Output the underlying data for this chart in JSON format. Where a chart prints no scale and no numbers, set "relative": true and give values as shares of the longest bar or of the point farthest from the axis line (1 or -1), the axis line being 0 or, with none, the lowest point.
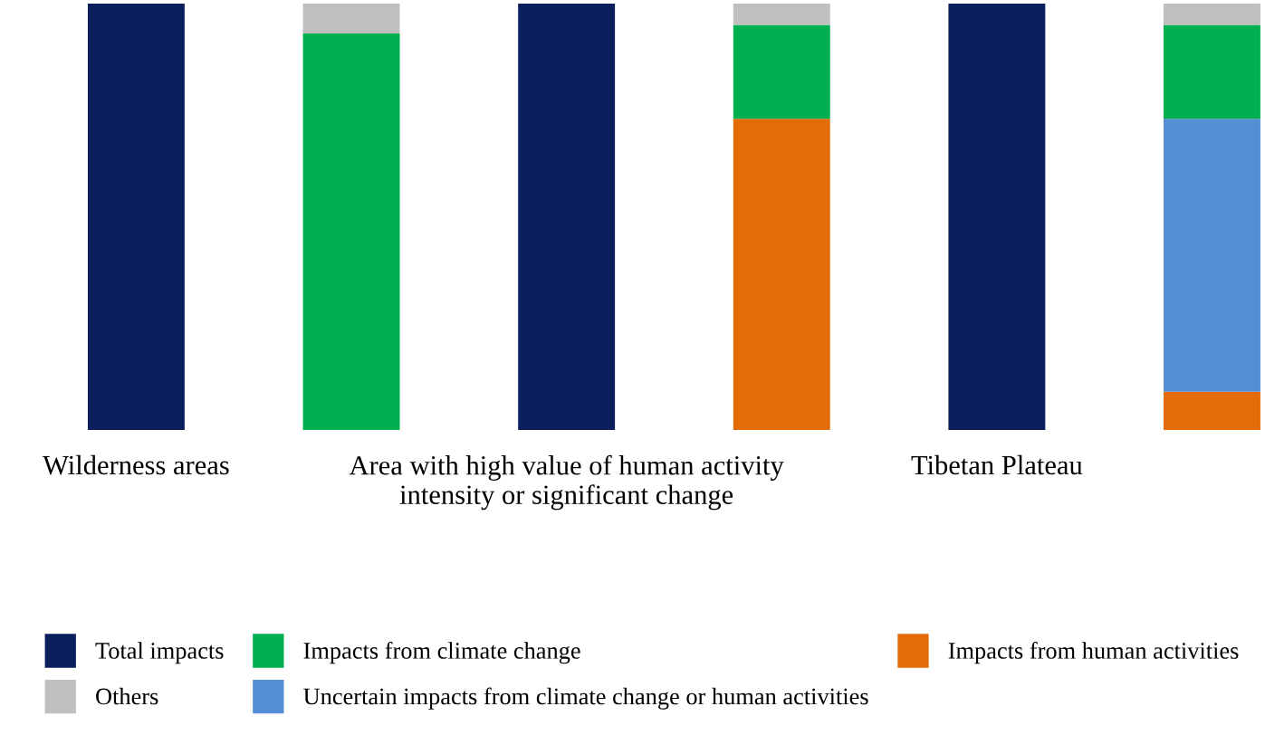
{
  "chart_data": {
    "type": "bar",
    "relative": true,
    "stacked": true,
    "categories": [
      "Wilderness areas",
      null,
      "Area with high value of human activity intensity or significant change",
      null,
      "Tibetan Plateau",
      null
    ],
    "series": [
      {
        "name": "Total impacts",
        "color": "#0a1f5c",
        "values": [
          1,
          null,
          1,
          null,
          1,
          null
        ]
      },
      {
        "name": "Impacts from human activities",
        "color": "#e36c09",
        "values": [
          null,
          null,
          null,
          0.73,
          null,
          0.09
        ]
      },
      {
        "name": "Uncertain impacts from climate change or human activities",
        "color": "#558ed5",
        "values": [
          null,
          null,
          null,
          null,
          null,
          0.64
        ]
      },
      {
        "name": "Impacts from climate change",
        "color": "#00b050",
        "values": [
          null,
          0.93,
          null,
          0.22,
          null,
          0.22
        ]
      },
      {
        "name": "Others",
        "color": "#bfbfbf",
        "values": [
          null,
          0.07,
          null,
          0.05,
          null,
          0.05
        ]
      }
    ],
    "legend": "bottom"
  }
}
